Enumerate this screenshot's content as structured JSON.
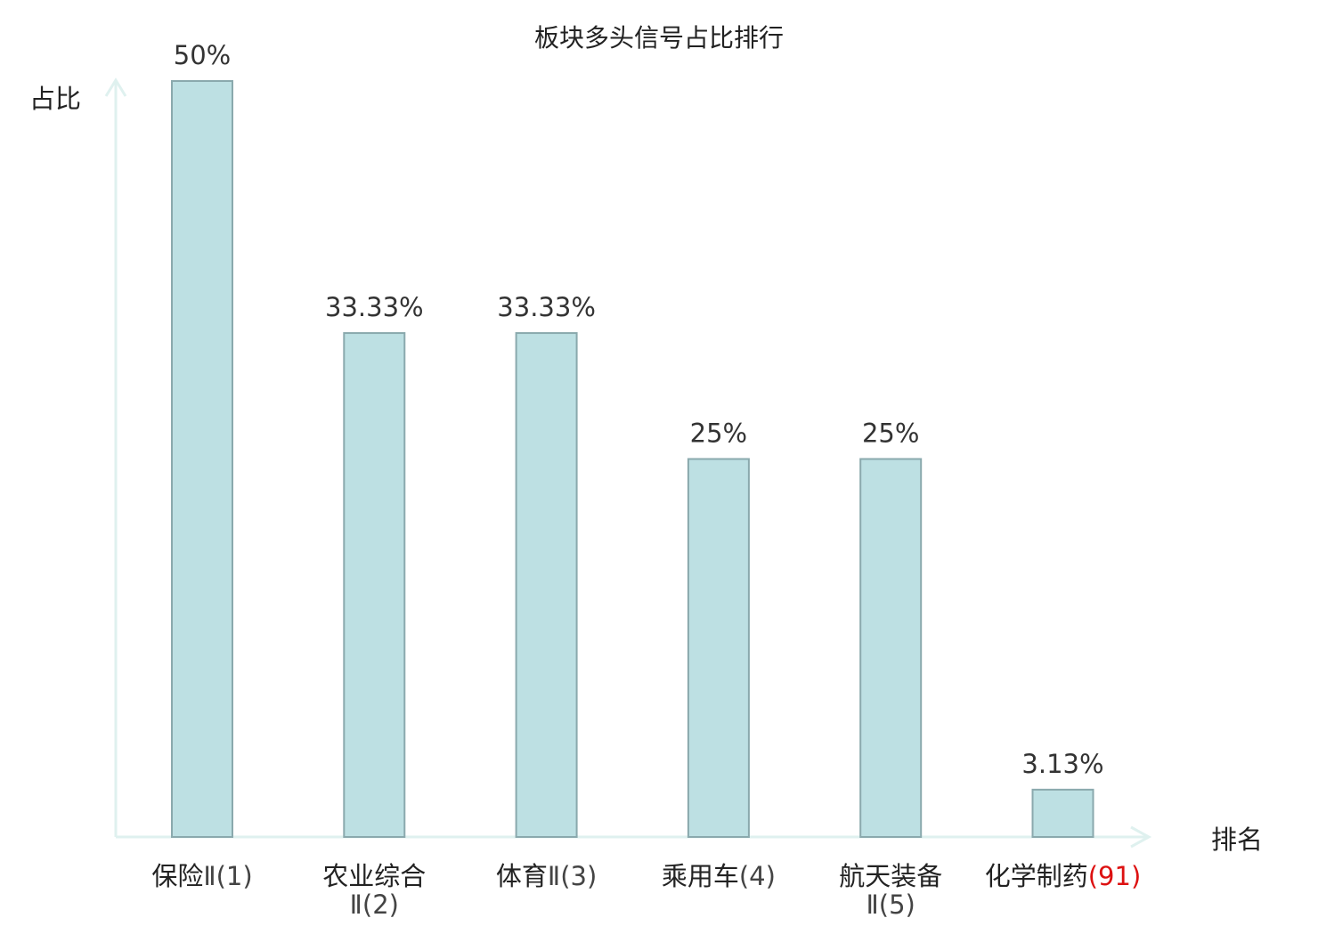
{
  "chart_data": {
    "type": "bar",
    "title": "板块多头信号占比排行",
    "ylabel": "占比",
    "xlabel": "排名",
    "categories": [
      {
        "name": "保险",
        "suffix": "Ⅱ(1)",
        "highlight": false
      },
      {
        "name": "农业综合",
        "suffix": "Ⅱ(2)",
        "highlight": false
      },
      {
        "name": "体育",
        "suffix": "Ⅱ(3)",
        "highlight": false
      },
      {
        "name": "乘用车",
        "suffix": "(4)",
        "highlight": false
      },
      {
        "name": "航天装备",
        "suffix": "Ⅱ(5)",
        "highlight": false
      },
      {
        "name": "化学制药",
        "suffix": "(91)",
        "highlight": true
      }
    ],
    "values": [
      50,
      33.33,
      33.33,
      25,
      25,
      3.13
    ],
    "value_labels": [
      "50%",
      "33.33%",
      "33.33%",
      "25%",
      "25%",
      "3.13%"
    ],
    "ylim": [
      0,
      50
    ],
    "grid": false,
    "colors": {
      "bar_fill": "#bde0e3",
      "bar_stroke": "#8aa9ad",
      "axis": "#dff1ef",
      "highlight": "#dd1111",
      "text": "#222222"
    }
  }
}
